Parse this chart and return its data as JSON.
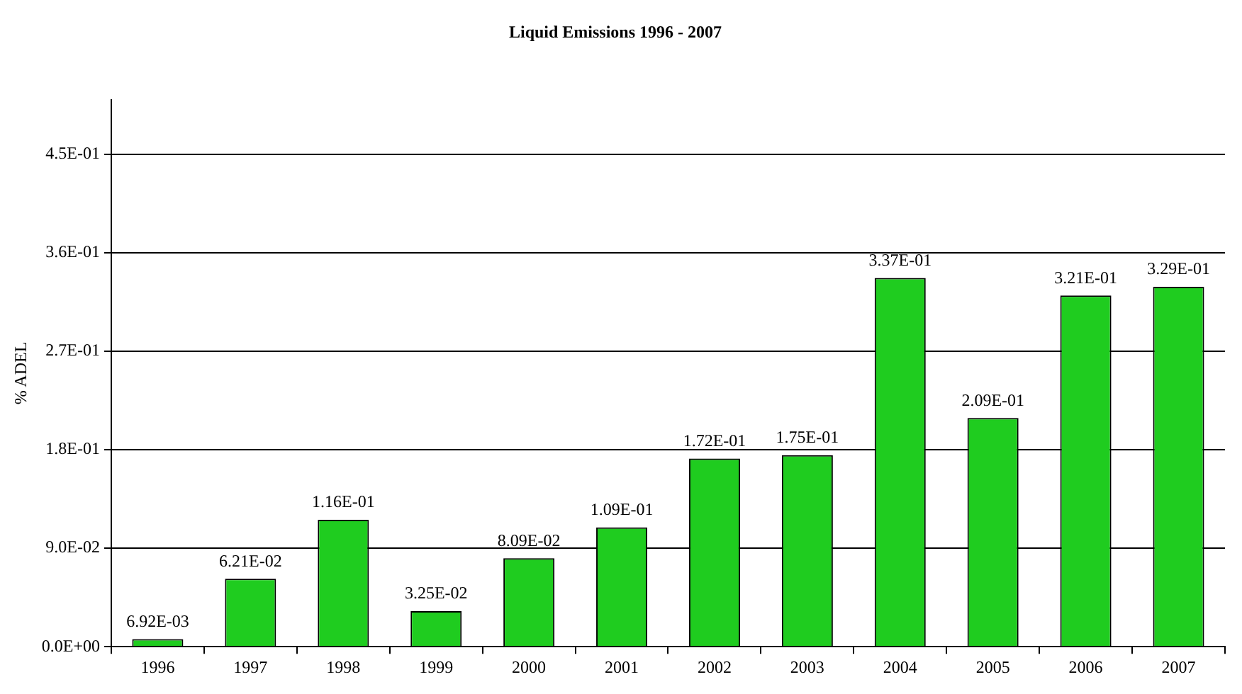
{
  "chart_data": {
    "type": "bar",
    "title": "Liquid Emissions 1996 - 2007",
    "ylabel": "% ADEL",
    "categories": [
      "1996",
      "1997",
      "1998",
      "1999",
      "2000",
      "2001",
      "2002",
      "2003",
      "2004",
      "2005",
      "2006",
      "2007"
    ],
    "values": [
      0.00692,
      0.0621,
      0.116,
      0.0325,
      0.0809,
      0.109,
      0.172,
      0.175,
      0.337,
      0.209,
      0.321,
      0.329
    ],
    "value_labels": [
      "6.92E-03",
      "6.21E-02",
      "1.16E-01",
      "3.25E-02",
      "8.09E-02",
      "1.09E-01",
      "1.72E-01",
      "1.75E-01",
      "3.37E-01",
      "2.09E-01",
      "3.21E-01",
      "3.29E-01"
    ],
    "color": "#1fcc1f",
    "ylim": [
      0,
      0.5
    ],
    "yticks": [
      {
        "value": 0,
        "label": "0.0E+00"
      },
      {
        "value": 0.09,
        "label": "9.0E-02"
      },
      {
        "value": 0.18,
        "label": "1.8E-01"
      },
      {
        "value": 0.27,
        "label": "2.7E-01"
      },
      {
        "value": 0.36,
        "label": "3.6E-01"
      },
      {
        "value": 0.45,
        "label": "4.5E-01"
      }
    ],
    "grid": "y",
    "legend": false
  }
}
